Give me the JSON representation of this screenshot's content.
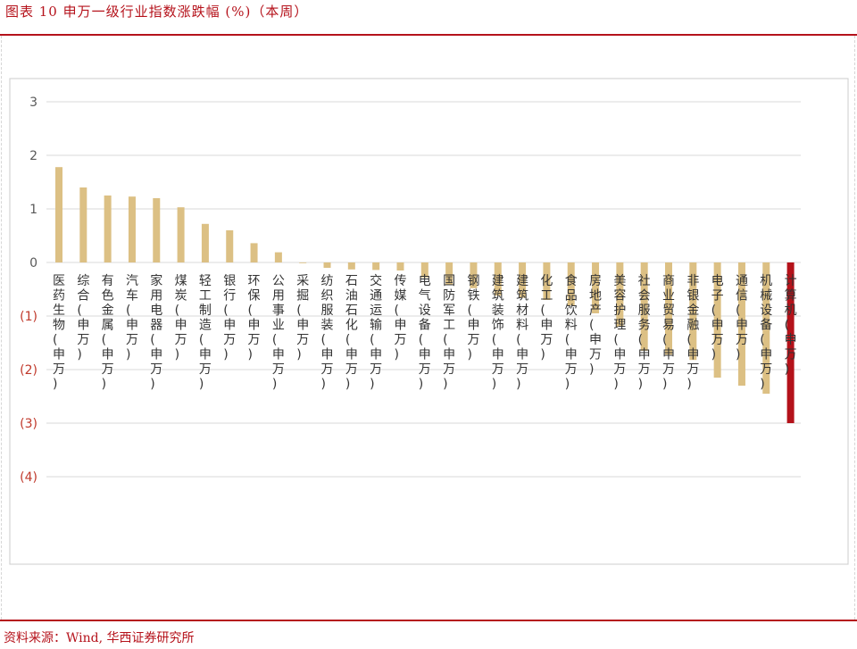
{
  "header": {
    "title": "图表 10 申万一级行业指数涨跌幅 (%)（本周）"
  },
  "footer": {
    "source": "资料来源：Wind, 华西证券研究所"
  },
  "colors": {
    "brand_red": "#b5121b",
    "bar_gold": "#dcc084",
    "bar_highlight": "#b4121a",
    "negative_tick": "#c0392b"
  },
  "chart_data": {
    "type": "bar",
    "categories": [
      "医药生物(申万)",
      "综合(申万)",
      "有色金属(申万)",
      "汽车(申万)",
      "家用电器(申万)",
      "煤炭(申万)",
      "轻工制造(申万)",
      "银行(申万)",
      "环保(申万)",
      "公用事业(申万)",
      "采掘(申万)",
      "纺织服装(申万)",
      "石油石化(申万)",
      "交通运输(申万)",
      "传媒(申万)",
      "电气设备(申万)",
      "国防军工(申万)",
      "钢铁(申万)",
      "建筑装饰(申万)",
      "建筑材料(申万)",
      "化工(申万)",
      "食品饮料(申万)",
      "房地产(申万)",
      "美容护理(申万)",
      "社会服务(申万)",
      "商业贸易(申万)",
      "非银金融(申万)",
      "电子(申万)",
      "通信(申万)",
      "机械设备(申万)",
      "计算机(申万)"
    ],
    "values": [
      1.78,
      1.4,
      1.25,
      1.23,
      1.2,
      1.03,
      0.72,
      0.6,
      0.36,
      0.19,
      -0.01,
      -0.1,
      -0.13,
      -0.14,
      -0.15,
      -0.28,
      -0.42,
      -0.48,
      -0.62,
      -0.66,
      -0.7,
      -0.8,
      -0.95,
      -1.2,
      -1.65,
      -1.72,
      -1.82,
      -2.15,
      -2.3,
      -2.45,
      -3.0
    ],
    "highlight_index": 30,
    "yticks": [
      3,
      2,
      1,
      0,
      -1,
      -2,
      -3,
      -4
    ],
    "ytick_labels": [
      "3",
      "2",
      "1",
      "0",
      "(1)",
      "(2)",
      "(3)",
      "(4)"
    ],
    "ylim": [
      -4,
      3
    ],
    "grid": true,
    "xlabel": "",
    "ylabel": ""
  }
}
